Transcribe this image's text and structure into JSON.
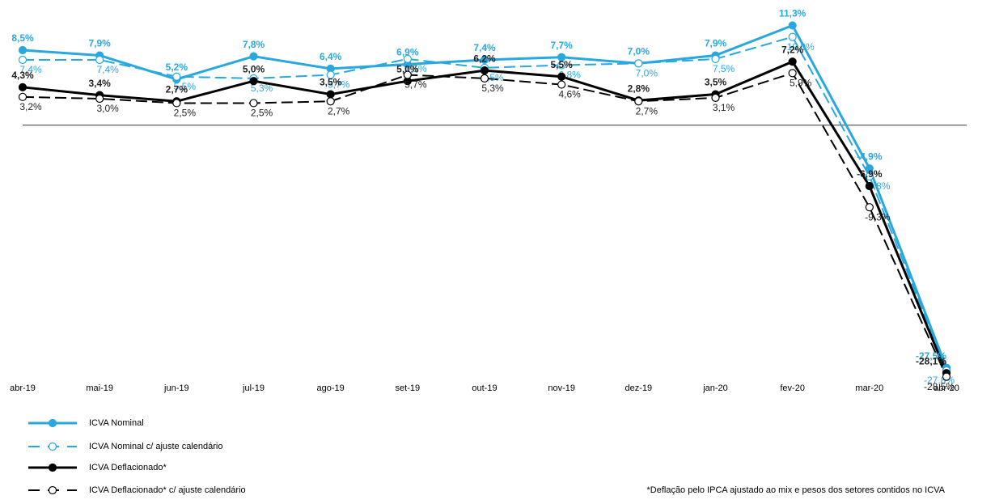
{
  "chart_data": {
    "type": "line",
    "categories": [
      "abr-19",
      "mai-19",
      "jun-19",
      "jul-19",
      "ago-19",
      "set-19",
      "out-19",
      "nov-19",
      "dez-19",
      "jan-20",
      "fev-20",
      "mar-20",
      "abr-20"
    ],
    "ylim": [
      -30,
      14
    ],
    "series": [
      {
        "name": "ICVA Nominal",
        "color": "#29a8e0",
        "line_style": "solid",
        "marker": "filled",
        "label_weight": "bold",
        "label_position": "above",
        "values": [
          8.5,
          7.9,
          5.2,
          7.8,
          6.4,
          6.9,
          7.4,
          7.7,
          7.0,
          7.9,
          11.3,
          -4.9,
          -27.5
        ],
        "value_labels": [
          "8,5%",
          "7,9%",
          "5,2%",
          "7,8%",
          "6,4%",
          "6,9%",
          "7,4%",
          "7,7%",
          "7,0%",
          "7,9%",
          "11,3%",
          "-4,9%",
          "-27,5%"
        ]
      },
      {
        "name": "ICVA Nominal c/ ajuste calendário",
        "color": "#29a8e0",
        "line_style": "dashed",
        "marker": "open",
        "label_weight": "normal",
        "label_position": "below",
        "values": [
          7.4,
          7.4,
          5.5,
          5.3,
          5.7,
          7.5,
          6.5,
          6.8,
          7.0,
          7.5,
          10.0,
          -5.8,
          -27.8
        ],
        "value_labels": [
          "7,4%",
          "7,4%",
          "5,5%",
          "5,3%",
          "5,7%",
          "7,5%",
          "6,5%",
          "6,8%",
          "7,0%",
          "7,5%",
          "10,0%",
          "-5,8%",
          "-27,8%"
        ]
      },
      {
        "name": "ICVA Deflacionado*",
        "color": "#000000",
        "line_style": "solid",
        "marker": "filled",
        "label_weight": "bold",
        "label_position": "above",
        "values": [
          4.3,
          3.4,
          2.7,
          5.0,
          3.5,
          5.0,
          6.2,
          5.5,
          2.8,
          3.5,
          7.2,
          -6.9,
          -28.1
        ],
        "value_labels": [
          "4,3%",
          "3,4%",
          "2,7%",
          "5,0%",
          "3,5%",
          "5,0%",
          "6,2%",
          "5,5%",
          "2,8%",
          "3,5%",
          "7,2%",
          "-6,9%",
          "-28,1%"
        ]
      },
      {
        "name": "ICVA Deflacionado*  c/ ajuste calendário",
        "color": "#000000",
        "line_style": "dashed",
        "marker": "open",
        "label_weight": "normal",
        "label_position": "below",
        "values": [
          3.2,
          3.0,
          2.5,
          2.5,
          2.7,
          5.7,
          5.3,
          4.6,
          2.7,
          3.1,
          5.9,
          -9.3,
          -28.5
        ],
        "value_labels": [
          "3,2%",
          "3,0%",
          "2,5%",
          "2,5%",
          "2,7%",
          "5,7%",
          "5,3%",
          "4,6%",
          "2,7%",
          "3,1%",
          "5,9%",
          "-9,3%",
          "-28,5%"
        ]
      }
    ],
    "note": "*Deflação pelo IPCA ajustado ao mix e pesos dos setores contidos no ICVA"
  }
}
